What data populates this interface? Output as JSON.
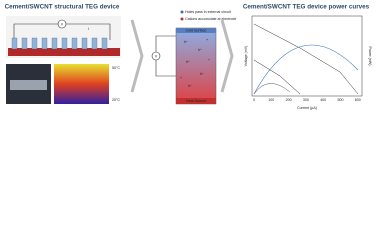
{
  "left": {
    "title": "Cement/SWCNT structural TEG device",
    "voltmeter": "V",
    "current": "I",
    "hot_label": "50°C",
    "cold_label": "20°C"
  },
  "middle": {
    "legend": [
      "Holes pass in external circuit",
      "Cations accumulate at electrode"
    ],
    "voltmeter": "V",
    "cold": "Cold Surface",
    "heat": "Heat Source",
    "hole": "h⁺",
    "cation": "+"
  },
  "right": {
    "title": "Cement/SWCNT TEG device power curves",
    "y_label": "Voltage (mV)",
    "y2_label": "Power (nW)",
    "x_label": "Current (µA)",
    "xticks": [
      "0",
      "100",
      "200",
      "300",
      "400",
      "500",
      "600"
    ]
  }
}
